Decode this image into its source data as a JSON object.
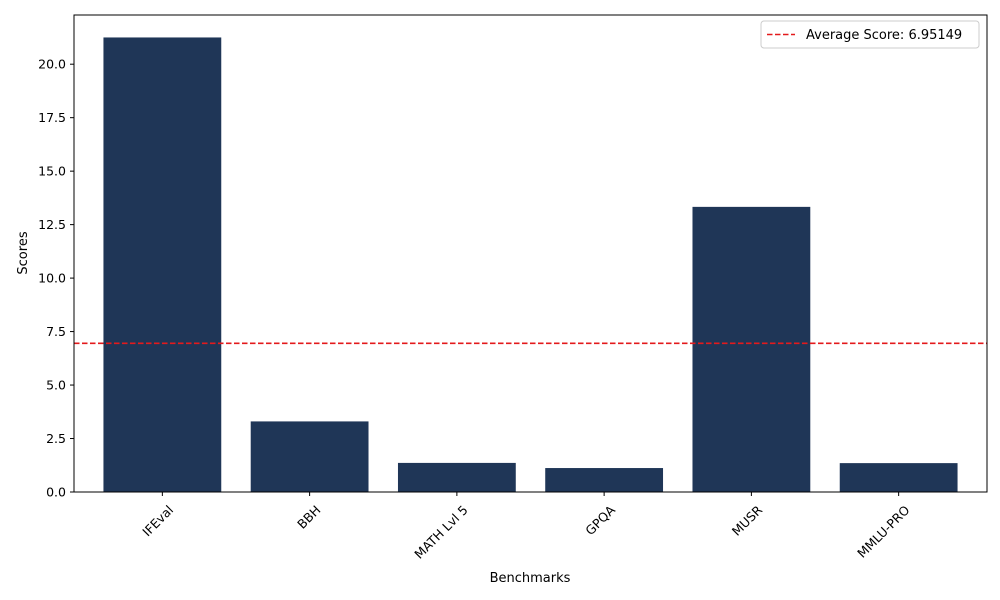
{
  "chart_data": {
    "type": "bar",
    "title": "",
    "xlabel": "Benchmarks",
    "ylabel": "Scores",
    "categories": [
      "IFEval",
      "BBH",
      "MATH Lvl 5",
      "GPQA",
      "MUSR",
      "MMLU-PRO"
    ],
    "values": [
      21.25,
      3.3,
      1.36,
      1.12,
      13.33,
      1.35
    ],
    "ylim": [
      0,
      22.3
    ],
    "yticks": [
      0.0,
      2.5,
      5.0,
      7.5,
      10.0,
      12.5,
      15.0,
      17.5,
      20.0
    ],
    "ytick_labels": [
      "0.0",
      "2.5",
      "5.0",
      "7.5",
      "10.0",
      "12.5",
      "15.0",
      "17.5",
      "20.0"
    ],
    "bar_color": "#1f3657",
    "average_line": {
      "value": 6.95149,
      "label": "Average Score: 6.95149",
      "color": "#e31a1c",
      "style": "dashed"
    },
    "legend_position": "top-right",
    "grid": false,
    "xtick_rotation_deg": 45
  }
}
